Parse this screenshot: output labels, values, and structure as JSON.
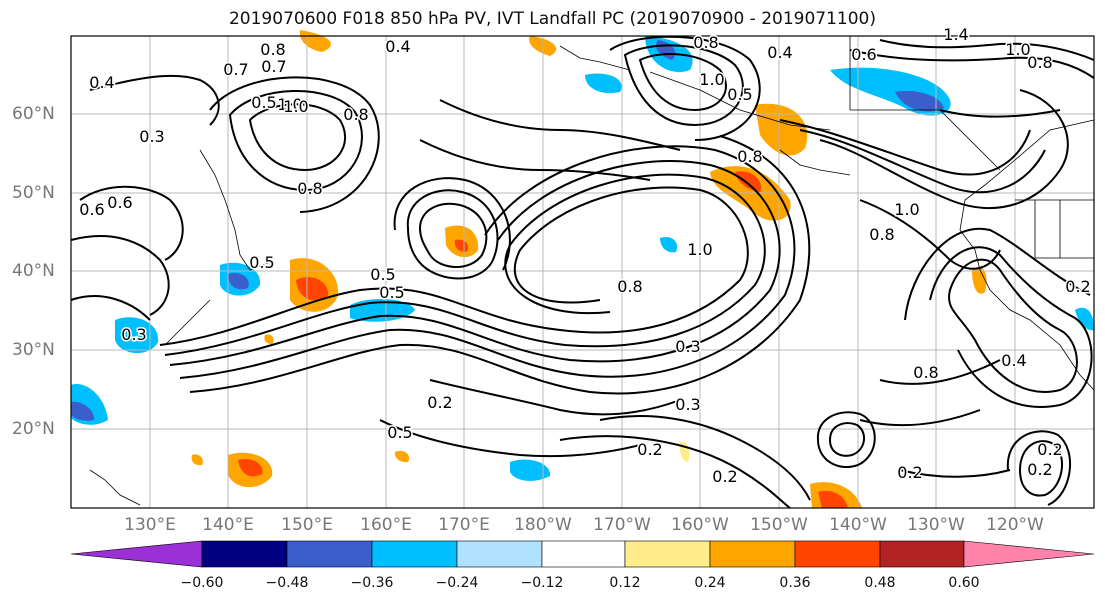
{
  "title": "2019070600 F018 850 hPa PV, IVT Landfall PC (2019070900 - 2019071100)",
  "lat_labels": [
    "60°N",
    "50°N",
    "40°N",
    "30°N",
    "20°N"
  ],
  "lon_labels": [
    "130°E",
    "140°E",
    "150°E",
    "160°E",
    "170°E",
    "180°W",
    "170°W",
    "160°W",
    "150°W",
    "140°W",
    "130°W",
    "120°W"
  ],
  "colorbar": {
    "ticks": [
      "−0.60",
      "−0.48",
      "−0.36",
      "−0.24",
      "−0.12",
      "0.12",
      "0.24",
      "0.36",
      "0.48",
      "0.60"
    ],
    "colors": [
      "#9b30d6",
      "#000080",
      "#3a5fcd",
      "#00bfff",
      "#b0e2ff",
      "#ffffff",
      "#ffec8b",
      "#ffa500",
      "#ff4500",
      "#b22222",
      "#ff82ab"
    ]
  },
  "contour_labels": [
    "0.8",
    "0.7",
    "0.4",
    "0.4",
    "1.0",
    "0.8",
    "0.4",
    "1.4",
    "1.0",
    "0.8",
    "0.6",
    "0.5",
    "0.3",
    "0.6",
    "0.6",
    "0.8",
    "1.0",
    "0.5",
    "0.5",
    "0.5",
    "0.2",
    "1.0",
    "0.8",
    "0.3",
    "0.2",
    "0.3",
    "0.2",
    "0.2",
    "0.2",
    "0.8",
    "0.8",
    "0.4",
    "0.5",
    "0.2",
    "1.0",
    "0.8",
    "0.2",
    "0.3",
    "0.5",
    "0.8",
    "0.7",
    "1.0"
  ]
}
